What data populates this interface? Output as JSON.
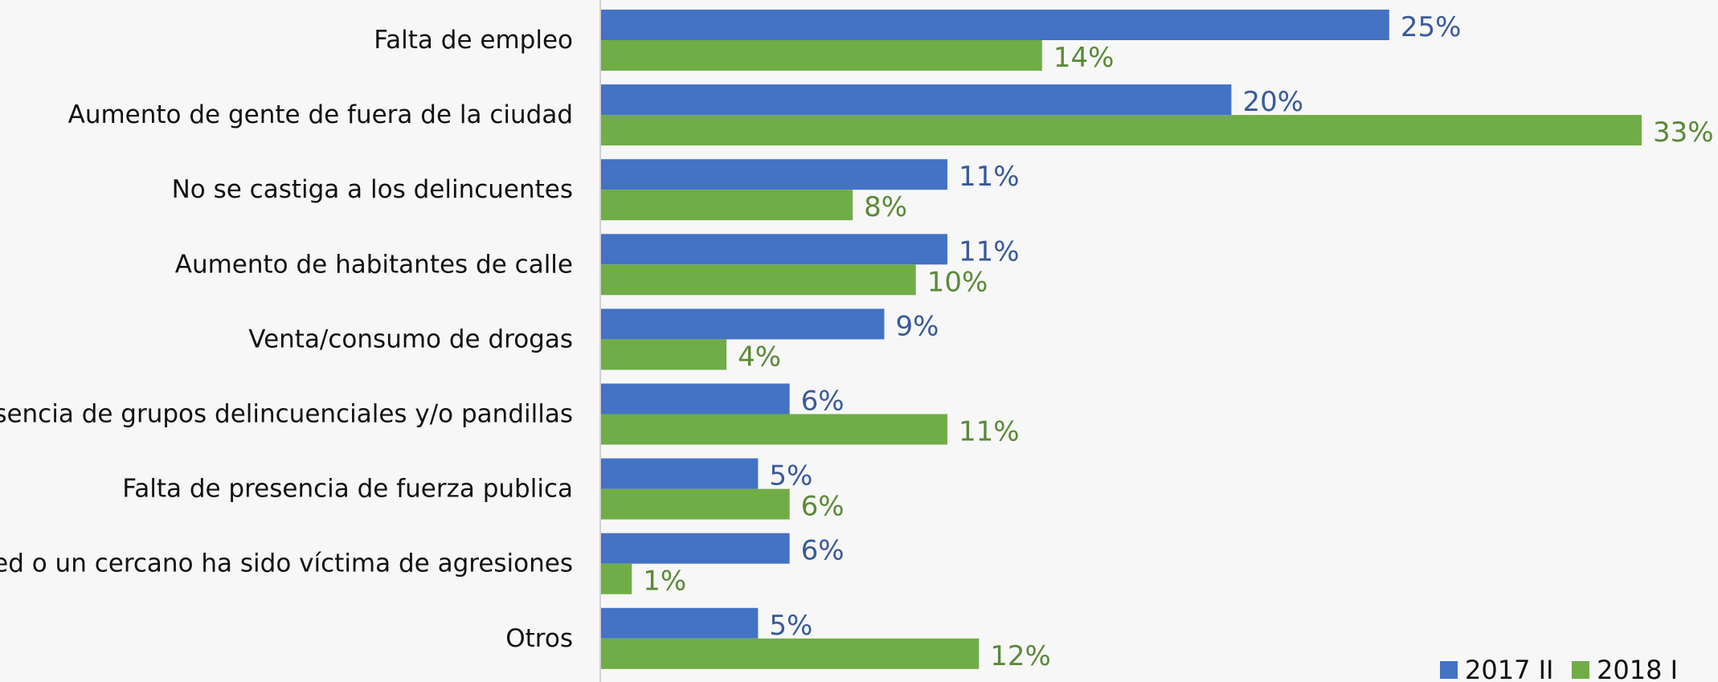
{
  "chart_data": {
    "type": "bar",
    "orientation": "horizontal",
    "categories": [
      "Falta de empleo",
      "Aumento de gente de fuera de la ciudad",
      "No se castiga a los delincuentes",
      "Aumento de habitantes de calle",
      "Venta/consumo de drogas",
      "Presencia de grupos delincuenciales y/o pandillas",
      "Falta de presencia de fuerza publica",
      "Usted o un cercano ha sido víctima de agresiones",
      "Otros"
    ],
    "series": [
      {
        "name": "2017 II",
        "color": "#4472c4",
        "label_color": "#3a5a99",
        "values": [
          25,
          20,
          11,
          11,
          9,
          6,
          5,
          6,
          5
        ],
        "labels": [
          "25%",
          "20%",
          "11%",
          "11%",
          "9%",
          "6%",
          "5%",
          "6%",
          "5%"
        ]
      },
      {
        "name": "2018 I",
        "color": "#70ad47",
        "label_color": "#5a8a38",
        "values": [
          14,
          33,
          8,
          10,
          4,
          11,
          6,
          1,
          12
        ],
        "labels": [
          "14%",
          "33%",
          "8%",
          "10%",
          "4%",
          "11%",
          "6%",
          "1%",
          "12%"
        ]
      }
    ],
    "unit": "%",
    "xlim": [
      0,
      33
    ],
    "grid": false,
    "legend_position": "bottom-right",
    "axis_line_color": "#d0d0d0"
  }
}
